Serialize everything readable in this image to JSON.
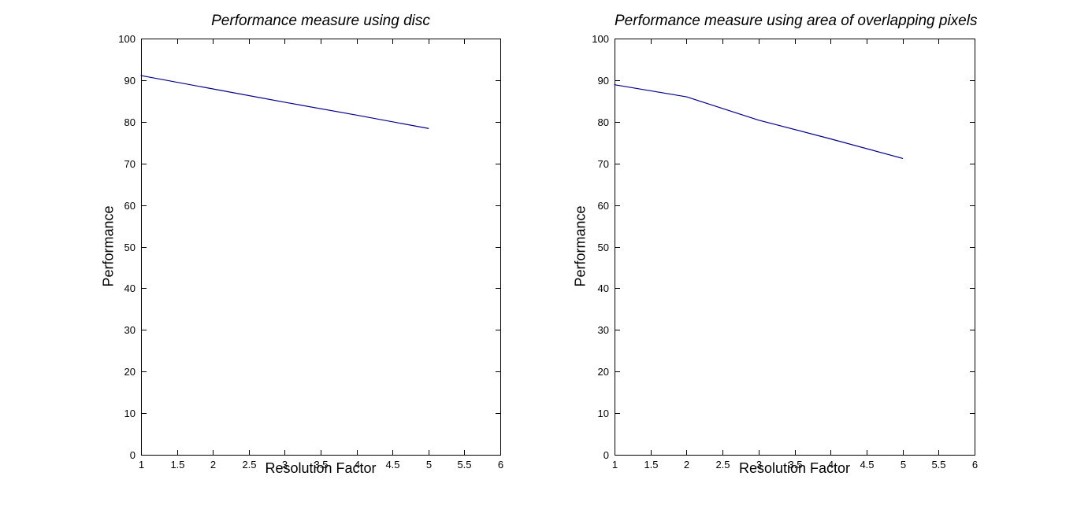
{
  "figure": {
    "background_color": "#FFFFFF",
    "axis_color": "#000000",
    "text_color": "#000000"
  },
  "chart_data": [
    {
      "type": "line",
      "title": "Performance measure using disc",
      "xlabel": "Resolution Factor",
      "ylabel": "Performance",
      "xlim": [
        1,
        6
      ],
      "ylim": [
        0,
        100
      ],
      "xticks": [
        1,
        1.5,
        2,
        2.5,
        3,
        3.5,
        4,
        4.5,
        5,
        5.5,
        6
      ],
      "yticks": [
        0,
        10,
        20,
        30,
        40,
        50,
        60,
        70,
        80,
        90,
        100
      ],
      "grid": false,
      "line_color": "#00008B",
      "series": [
        {
          "name": "performance",
          "x": [
            1,
            2,
            3,
            4,
            5
          ],
          "y": [
            91.1,
            87.9,
            84.7,
            81.6,
            78.4
          ]
        }
      ]
    },
    {
      "type": "line",
      "title": "Performance measure using area of overlapping pixels",
      "xlabel": "Resolution Factor",
      "ylabel": "Performance",
      "xlim": [
        1,
        6
      ],
      "ylim": [
        0,
        100
      ],
      "xticks": [
        1,
        1.5,
        2,
        2.5,
        3,
        3.5,
        4,
        4.5,
        5,
        5.5,
        6
      ],
      "yticks": [
        0,
        10,
        20,
        30,
        40,
        50,
        60,
        70,
        80,
        90,
        100
      ],
      "grid": false,
      "line_color": "#00008B",
      "series": [
        {
          "name": "performance",
          "x": [
            1,
            2,
            3,
            4,
            5
          ],
          "y": [
            88.9,
            86.0,
            80.4,
            75.9,
            71.2
          ]
        }
      ]
    }
  ]
}
